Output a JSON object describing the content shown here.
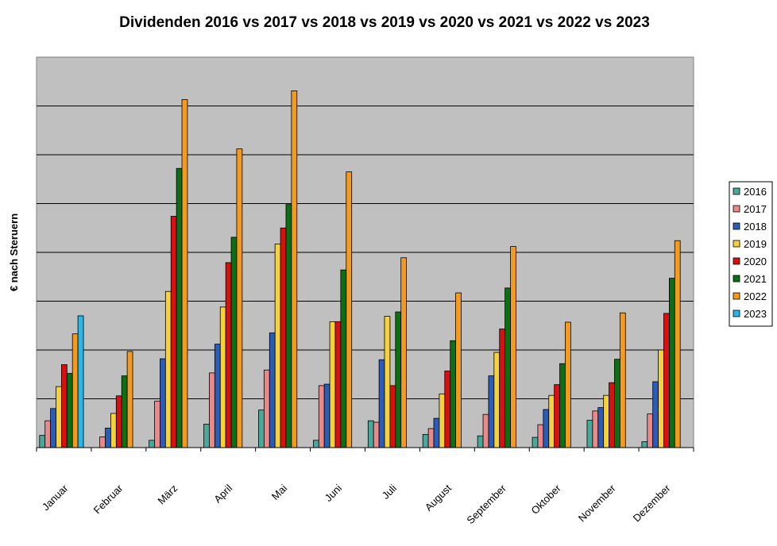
{
  "chart_data": {
    "type": "bar",
    "title": "Dividenden 2016 vs 2017 vs 2018 vs 2019 vs 2020 vs 2021 vs 2022 vs 2023",
    "xlabel": "",
    "ylabel": "€ nach Steruern",
    "ylim": [
      0,
      8
    ],
    "grid": true,
    "legend_position": "right",
    "plot_background": "#c0c0c0",
    "categories": [
      "Januar",
      "Februar",
      "März",
      "April",
      "Mai",
      "Juni",
      "Juli",
      "August",
      "September",
      "Oktober",
      "November",
      "Dezember"
    ],
    "series": [
      {
        "name": "2016",
        "color": "#4aa89a",
        "values": [
          0.25,
          0,
          0.15,
          0.48,
          0.77,
          0.15,
          0.55,
          0.27,
          0.24,
          0.21,
          0.56,
          0.12
        ]
      },
      {
        "name": "2017",
        "color": "#e88a8a",
        "values": [
          0.55,
          0.22,
          0.95,
          1.53,
          1.59,
          1.27,
          0.52,
          0.39,
          0.68,
          0.47,
          0.75,
          0.69
        ]
      },
      {
        "name": "2018",
        "color": "#2a5cb8",
        "values": [
          0.8,
          0.4,
          1.82,
          2.12,
          2.35,
          1.3,
          1.8,
          0.6,
          1.47,
          0.78,
          0.82,
          1.35
        ]
      },
      {
        "name": "2019",
        "color": "#f5d23c",
        "values": [
          1.25,
          0.7,
          3.2,
          2.88,
          4.17,
          2.58,
          2.69,
          1.1,
          1.95,
          1.07,
          1.07,
          2.0
        ]
      },
      {
        "name": "2020",
        "color": "#d81010",
        "values": [
          1.7,
          1.06,
          4.74,
          3.79,
          4.5,
          2.58,
          1.27,
          1.57,
          2.43,
          1.29,
          1.33,
          2.75
        ]
      },
      {
        "name": "2021",
        "color": "#0d6e14",
        "values": [
          1.52,
          1.47,
          5.72,
          4.31,
          4.98,
          3.64,
          2.78,
          2.19,
          3.27,
          1.72,
          1.81,
          3.47
        ]
      },
      {
        "name": "2022",
        "color": "#f39a20",
        "values": [
          2.33,
          1.97,
          7.13,
          6.12,
          7.31,
          5.65,
          3.89,
          3.17,
          4.12,
          2.57,
          2.76,
          4.24
        ]
      },
      {
        "name": "2023",
        "color": "#29b6e8",
        "values": [
          2.7,
          0,
          0,
          0,
          0,
          0,
          0,
          0,
          0,
          0,
          0,
          0
        ]
      }
    ]
  }
}
